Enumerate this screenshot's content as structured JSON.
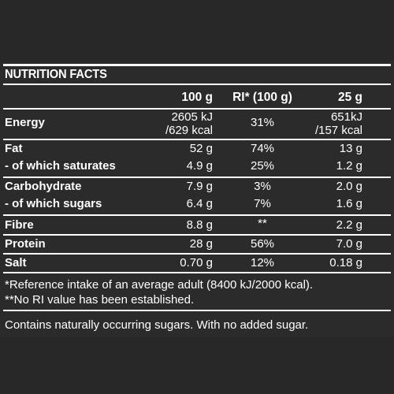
{
  "title": "NUTRITION FACTS",
  "header": {
    "per100": "100 g",
    "ri": "RI* (100 g)",
    "per25": "25 g"
  },
  "rows": [
    {
      "label": "Energy",
      "per100_l1": "2605 kJ",
      "per100_l2": "/629 kcal",
      "ri": "31%",
      "per25_l1": "651kJ",
      "per25_l2": "/157 kcal"
    },
    {
      "label": "Fat",
      "per100": "52 g",
      "ri": "74%",
      "per25": "13 g"
    },
    {
      "label": "- of which saturates",
      "per100": "4.9 g",
      "ri": "25%",
      "per25": "1.2 g"
    },
    {
      "label": "Carbohydrate",
      "per100": "7.9 g",
      "ri": "3%",
      "per25": "2.0 g"
    },
    {
      "label": "- of which sugars",
      "per100": "6.4 g",
      "ri": "7%",
      "per25": "1.6 g"
    },
    {
      "label": "Fibre",
      "per100": "8.8 g",
      "ri": "**",
      "per25": "2.2 g"
    },
    {
      "label": "Protein",
      "per100": "28 g",
      "ri": "56%",
      "per25": "7.0 g"
    },
    {
      "label": "Salt",
      "per100": "0.70 g",
      "ri": "12%",
      "per25": "0.18 g"
    }
  ],
  "footnotes": {
    "ref": "*Reference intake of an average adult (8400 kJ/2000 kcal).",
    "no_ri": "**No RI value has been established."
  },
  "note": "Contains naturally occurring sugars. With no added sugar."
}
